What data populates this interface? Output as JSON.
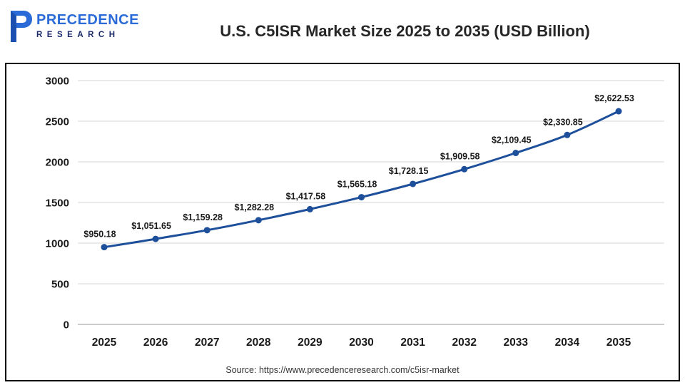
{
  "header": {
    "logo": {
      "line1": "PRECEDENCE",
      "line2": "RESEARCH"
    },
    "title": "U.S. C5ISR Market Size 2025 to 2035 (USD Billion)"
  },
  "footer": {
    "source": "Source: https://www.precedenceresearch.com/c5isr-market"
  },
  "colors": {
    "line": "#1d4f9b",
    "marker": "#1d4f9b",
    "grid": "#d4d4d4",
    "baseline": "#9a9a9a",
    "tick_label": "#1a1a1a",
    "data_label": "#1a1a1a",
    "logo_blue": "#2a6bd7",
    "logo_navy": "#1b2a6b"
  },
  "chart_data": {
    "type": "line",
    "title": "U.S. C5ISR Market Size 2025 to 2035 (USD Billion)",
    "unit": "USD Billion",
    "categories": [
      "2025",
      "2026",
      "2027",
      "2028",
      "2029",
      "2030",
      "2031",
      "2032",
      "2033",
      "2034",
      "2035"
    ],
    "values": [
      950.18,
      1051.65,
      1159.28,
      1282.28,
      1417.58,
      1565.18,
      1728.15,
      1909.58,
      2109.45,
      2330.85,
      2622.53
    ],
    "data_labels": [
      "$950.18",
      "$1,051.65",
      "$1,159.28",
      "$1,282.28",
      "$1,417.58",
      "$1,565.18",
      "$1,728.15",
      "$1,909.58",
      "$2,109.45",
      "$2,330.85",
      "$2,622.53"
    ],
    "ylim": [
      0,
      3000
    ],
    "yticks": [
      0,
      500,
      1000,
      1500,
      2000,
      2500,
      3000
    ],
    "ytick_labels": [
      "0",
      "500",
      "1000",
      "1500",
      "2000",
      "2500",
      "3000"
    ],
    "xlabel": "",
    "ylabel": "",
    "grid": true,
    "legend": "none",
    "smooth": true
  }
}
